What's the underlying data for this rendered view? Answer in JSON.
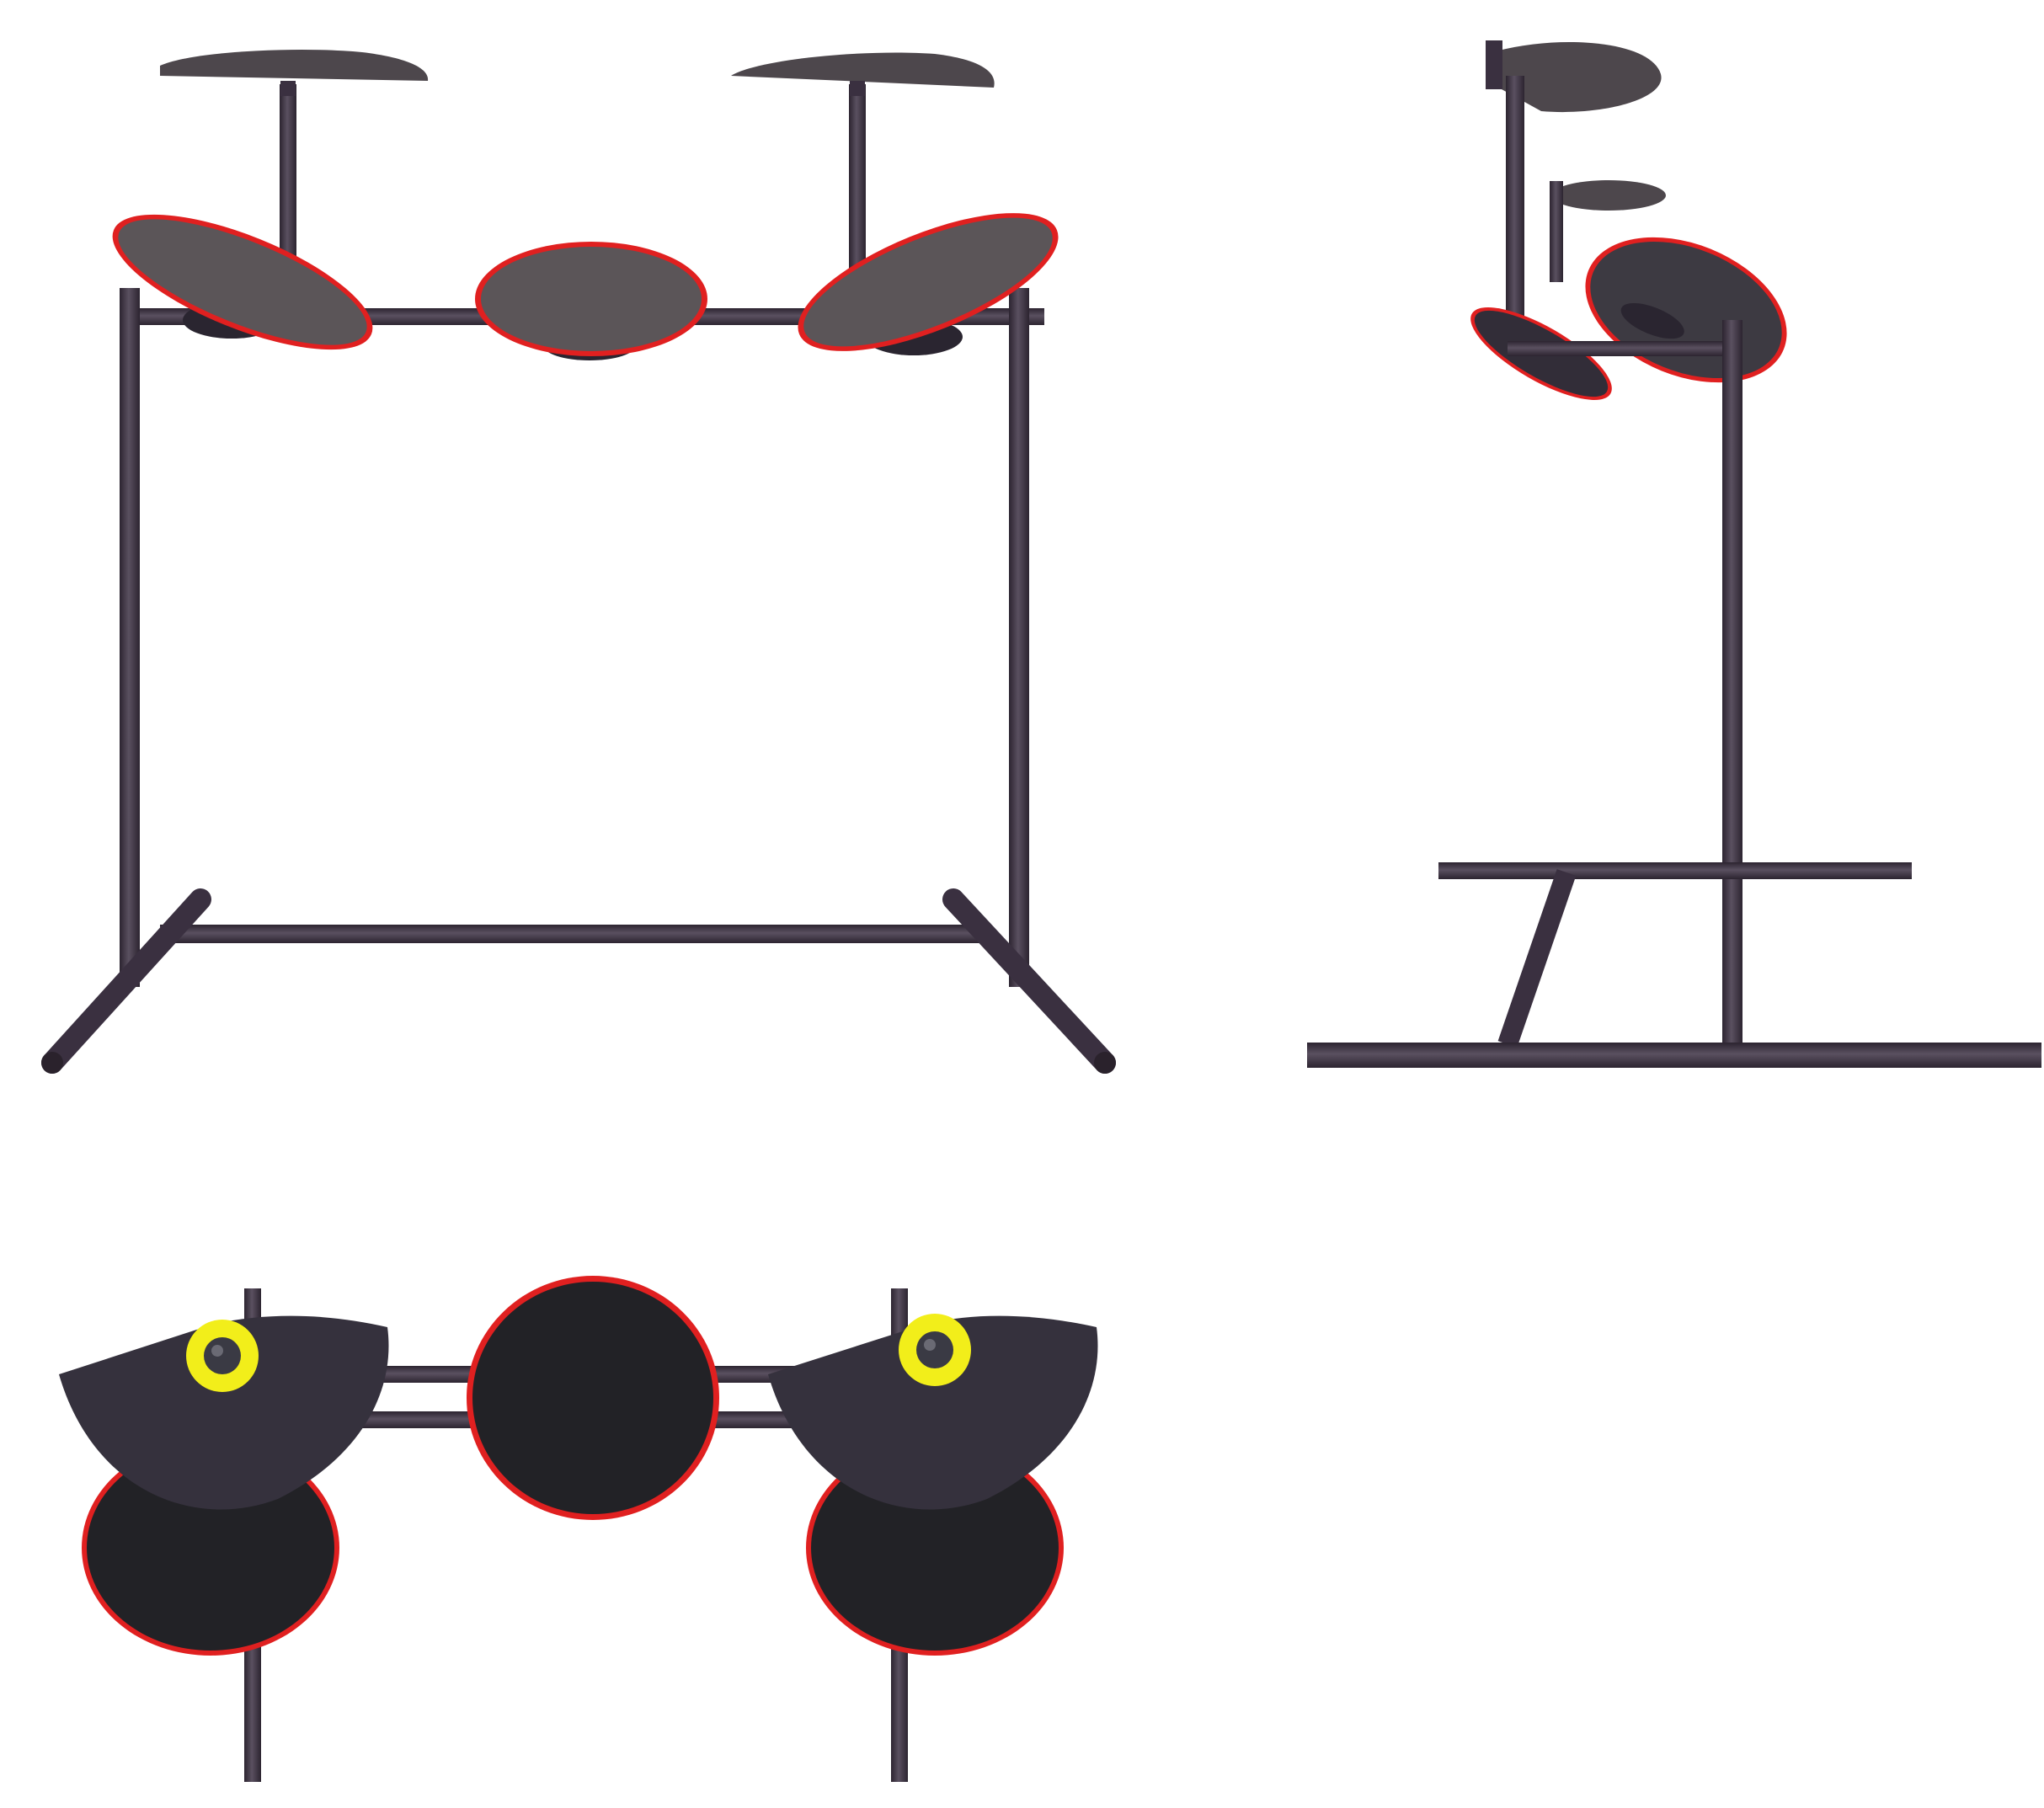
{
  "image": {
    "background": "#ffffff",
    "subject": "drum-kit-stand-orthographic-views"
  },
  "colors": {
    "frame": "#3a3040",
    "frame_highlight": "#5a5060",
    "pad_face_front": "#5b5558",
    "pad_face_top": "#222226",
    "cymbal_top": "#35313d",
    "rim": "#e02020",
    "clamp_ring": "#f2ee1a",
    "clamp_center": "#3a3a44"
  },
  "views": [
    {
      "id": "front-view",
      "pads": 3,
      "cymbals": 2
    },
    {
      "id": "side-view",
      "pads": 2,
      "cymbals": 2
    },
    {
      "id": "top-view",
      "pads": 3,
      "cymbals": 2
    }
  ]
}
